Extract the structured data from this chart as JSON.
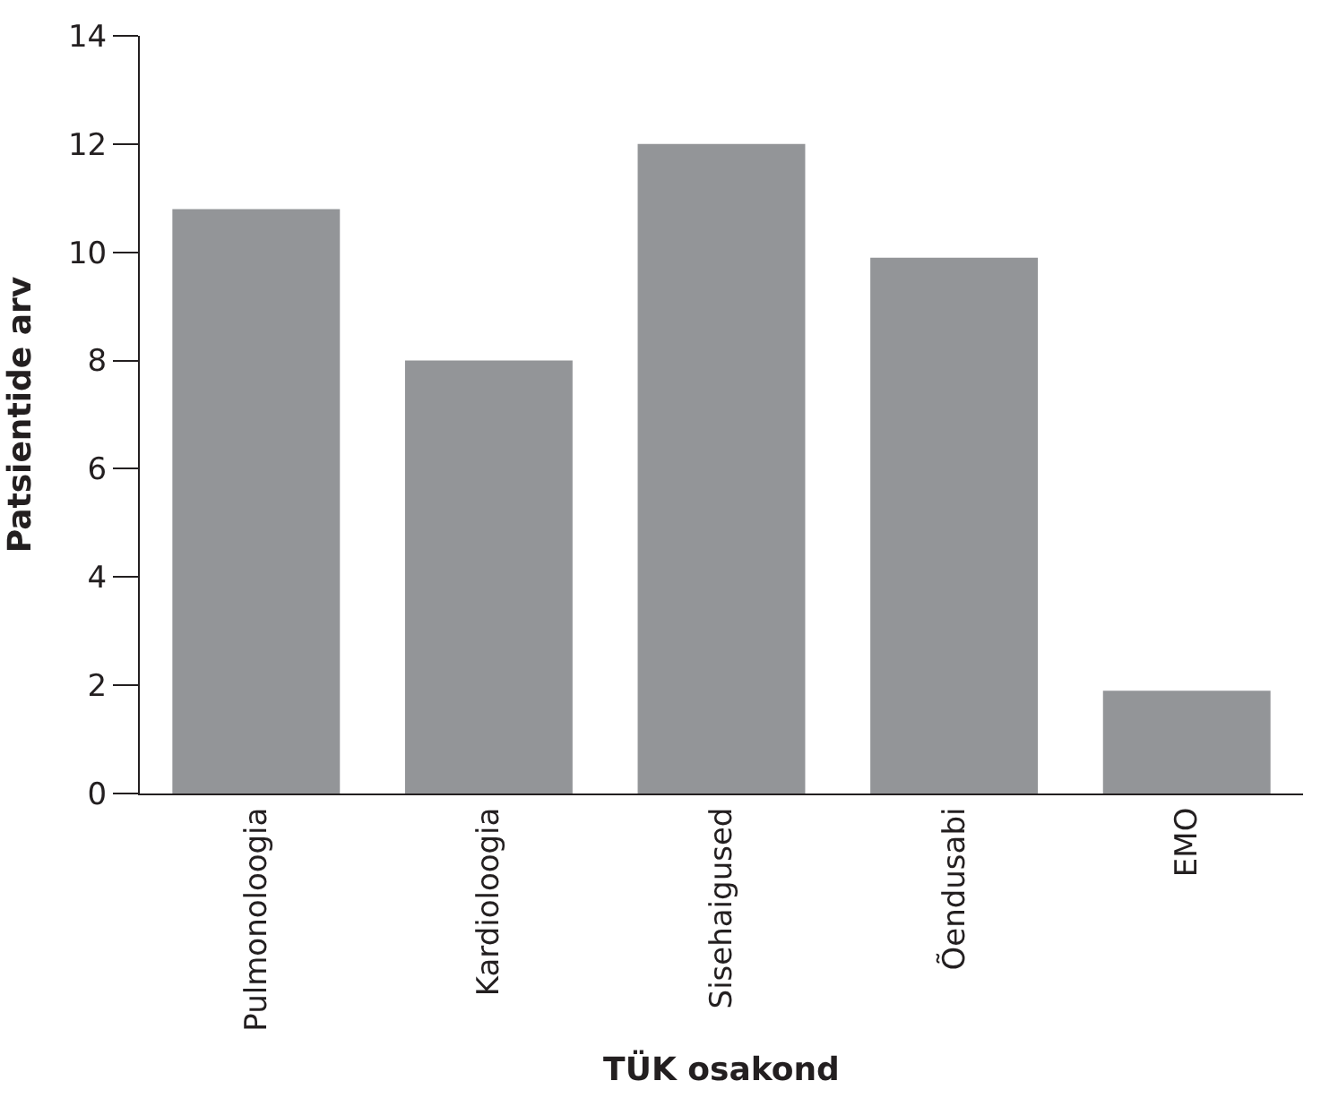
{
  "chart_data": {
    "type": "bar",
    "xlabel": "TÜK osakond",
    "ylabel": "Patsientide arv",
    "categories": [
      "Pulmonoloogia",
      "Kardioloogia",
      "Sisehaigused",
      "Õendusabi",
      "EMO"
    ],
    "values": [
      10.8,
      8,
      12,
      9.9,
      1.9
    ],
    "color": "#939598",
    "ylim": [
      0,
      14
    ],
    "yticks": [
      0,
      2,
      4,
      6,
      8,
      10,
      12,
      14
    ]
  }
}
